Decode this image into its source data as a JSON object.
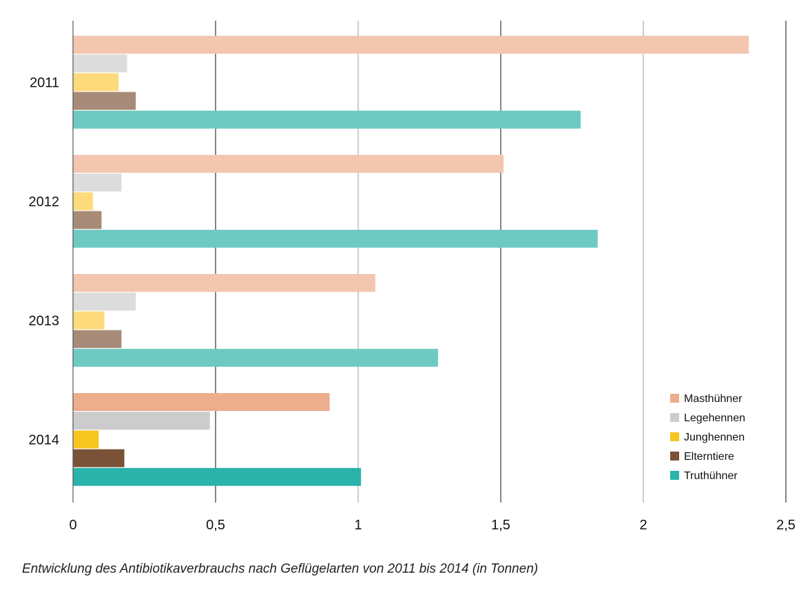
{
  "chart_data": {
    "type": "bar",
    "orientation": "horizontal",
    "categories": [
      "2011",
      "2012",
      "2013",
      "2014"
    ],
    "series": [
      {
        "name": "Masthühner",
        "values": [
          2.37,
          1.51,
          1.06,
          0.9
        ]
      },
      {
        "name": "Legehennen",
        "values": [
          0.19,
          0.17,
          0.22,
          0.48
        ]
      },
      {
        "name": "Junghennen",
        "values": [
          0.16,
          0.07,
          0.11,
          0.09
        ]
      },
      {
        "name": "Elterntiere",
        "values": [
          0.22,
          0.1,
          0.17,
          0.18
        ]
      },
      {
        "name": "Truthühner",
        "values": [
          1.78,
          1.84,
          1.28,
          1.01
        ]
      }
    ],
    "colors": {
      "faded": [
        "#f3c6b0",
        "#dcdcdc",
        "#fddb7a",
        "#a78b78",
        "#6ec9c3"
      ],
      "current": [
        "#ecae8d",
        "#cccccc",
        "#f6c520",
        "#7a5238",
        "#2ab3a9"
      ]
    },
    "xlim": [
      0,
      2.5
    ],
    "xticks": [
      "0",
      "0,5",
      "1",
      "1,5",
      "2",
      "2,5"
    ],
    "xtick_values": [
      0,
      0.5,
      1,
      1.5,
      2,
      2.5
    ],
    "grid": true,
    "legend_position": "bottom-right",
    "caption": "Entwicklung des Antibiotikaverbrauchs nach Geflügelarten von 2011 bis 2014 (in Tonnen)"
  }
}
